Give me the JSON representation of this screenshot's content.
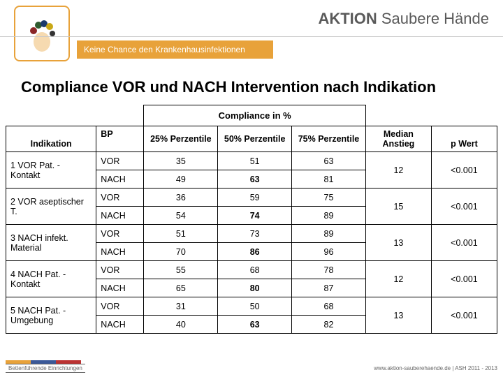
{
  "header": {
    "brand_bold": "AKTION",
    "brand_rest": " Saubere Hände",
    "subtitle": "Keine Chance den Krankenhausinfektionen"
  },
  "title": "Compliance VOR und NACH Intervention nach Indikation",
  "table": {
    "super_header": "Compliance in %",
    "headers": {
      "indikation": "Indikation",
      "bp": "BP",
      "p25": "25% Perzentile",
      "p50": "50% Perzentile",
      "p75": "75% Perzentile",
      "median": "Median Anstieg",
      "pwert": "p Wert"
    },
    "rows": [
      {
        "label": "1 VOR Pat. - Kontakt",
        "vor": {
          "p25": "35",
          "p50": "51",
          "p75": "63"
        },
        "nach": {
          "p25": "49",
          "p50": "63",
          "p75": "81"
        },
        "median": "12",
        "pwert": "<0.001"
      },
      {
        "label": "2 VOR aseptischer T.",
        "vor": {
          "p25": "36",
          "p50": "59",
          "p75": "75"
        },
        "nach": {
          "p25": "54",
          "p50": "74",
          "p75": "89"
        },
        "median": "15",
        "pwert": "<0.001"
      },
      {
        "label": "3 NACH infekt. Material",
        "vor": {
          "p25": "51",
          "p50": "73",
          "p75": "89"
        },
        "nach": {
          "p25": "70",
          "p50": "86",
          "p75": "96"
        },
        "median": "13",
        "pwert": "<0.001"
      },
      {
        "label": "4 NACH Pat. - Kontakt",
        "vor": {
          "p25": "55",
          "p50": "68",
          "p75": "78"
        },
        "nach": {
          "p25": "65",
          "p50": "80",
          "p75": "87"
        },
        "median": "12",
        "pwert": "<0.001"
      },
      {
        "label": "5 NACH Pat. - Umgebung",
        "vor": {
          "p25": "31",
          "p50": "50",
          "p75": "68"
        },
        "nach": {
          "p25": "40",
          "p50": "63",
          "p75": "82"
        },
        "median": "13",
        "pwert": "<0.001"
      }
    ],
    "bp_labels": {
      "vor": "VOR",
      "nach": "NACH"
    }
  },
  "footer": {
    "left": "Bettenführende Einrichtungen",
    "right": "www.aktion-sauberehaende.de   |   ASH 2011 - 2013"
  }
}
